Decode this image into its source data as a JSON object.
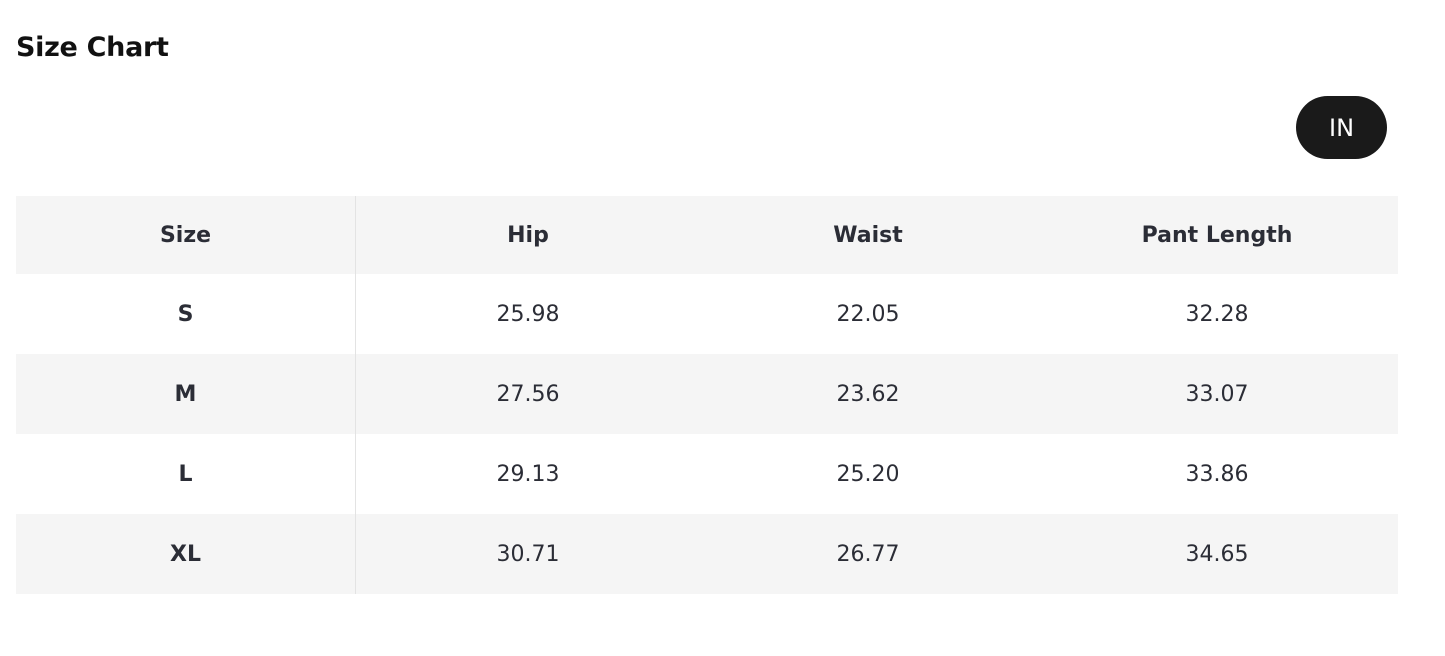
{
  "title": "Size Chart",
  "unit_toggle": {
    "label": "IN"
  },
  "table": {
    "headers": [
      "Size",
      "Hip",
      "Waist",
      "Pant Length"
    ],
    "rows": [
      [
        "S",
        "25.98",
        "22.05",
        "32.28"
      ],
      [
        "M",
        "27.56",
        "23.62",
        "33.07"
      ],
      [
        "L",
        "29.13",
        "25.20",
        "33.86"
      ],
      [
        "XL",
        "30.71",
        "26.77",
        "34.65"
      ]
    ]
  },
  "colors": {
    "button_bg": "#1a1a1a",
    "stripe_bg": "#f5f5f5",
    "text": "#2b2d36"
  }
}
